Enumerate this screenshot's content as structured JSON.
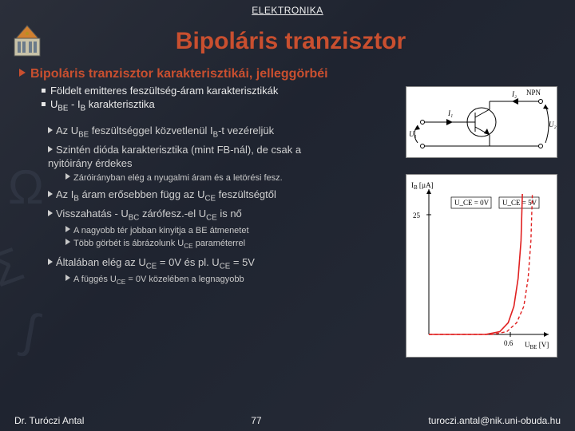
{
  "header": {
    "course": "ELEKTRONIKA",
    "title": "Bipoláris tranzisztor"
  },
  "section": {
    "heading": "Bipoláris tranzisztor karakterisztikái, jelleggörbéi"
  },
  "l1": {
    "a": "Földelt emitteres feszültség-áram karakterisztikák",
    "b_pre": "U",
    "b_sub1": "BE",
    "b_mid": " - I",
    "b_sub2": "B",
    "b_post": " karakterisztika"
  },
  "l2": {
    "p1_pre": "Az U",
    "p1_s1": "BE",
    "p1_mid": " feszültséggel közvetlenül I",
    "p1_s2": "B",
    "p1_post": "-t vezéreljük",
    "p2": "Szintén dióda karakterisztika (mint FB-nál), de csak a nyitóirány érdekes",
    "p2_sub": "Záróirányban elég a nyugalmi áram és a letörési fesz.",
    "p3_pre": "Az I",
    "p3_s1": "B",
    "p3_mid": " áram erősebben függ  az U",
    "p3_s2": "CE",
    "p3_post": " feszültségtől",
    "p4_pre": "Visszahatás - U",
    "p4_s1": "BC",
    "p4_mid": " zárófesz.-el U",
    "p4_s2": "CE",
    "p4_post": " is nő",
    "p4_sub1": "A nagyobb tér jobban kinyitja a BE átmenetet",
    "p4_sub2_pre": "Több görbét is ábrázolunk U",
    "p4_sub2_s": "CE",
    "p4_sub2_post": " paraméterrel",
    "p5_pre": "Általában elég az U",
    "p5_s1": "CE",
    "p5_mid": " = 0V és pl. U",
    "p5_s2": "CE",
    "p5_post": " = 5V",
    "p5_sub_pre": "A függés U",
    "p5_sub_s": "CE",
    "p5_sub_post": " = 0V közelében a legnagyobb"
  },
  "circuit": {
    "labels": {
      "U1": "U₁",
      "U2": "U₂",
      "I1": "I₁",
      "I2": "I₂",
      "npn": "NPN"
    },
    "stroke": "#000000",
    "line_width": 1,
    "bg": "#ffffff"
  },
  "chart": {
    "type": "line",
    "bg": "#ffffff",
    "axis_color": "#000000",
    "grid": false,
    "xlabel": "U",
    "xlabel_sub": "BE",
    "xlabel_unit": " [V]",
    "ylabel": "I",
    "ylabel_sub": "B",
    "ylabel_unit": " [µA]",
    "xlim": [
      0,
      0.8
    ],
    "ylim": [
      0,
      30
    ],
    "xticks": [
      0.6
    ],
    "yticks": [
      25
    ],
    "legend": {
      "left": "U_CE = 0V",
      "right": "U_CE = 5V"
    },
    "curve_color": "#e02020",
    "dash_color": "#e02020",
    "line_width": 1.6,
    "curve_solid": [
      [
        0.0,
        0
      ],
      [
        0.4,
        0
      ],
      [
        0.5,
        0.6
      ],
      [
        0.56,
        2.5
      ],
      [
        0.6,
        6
      ],
      [
        0.63,
        12
      ],
      [
        0.65,
        20
      ],
      [
        0.66,
        30
      ]
    ],
    "curve_dash": [
      [
        0.0,
        0
      ],
      [
        0.45,
        0
      ],
      [
        0.55,
        0.6
      ],
      [
        0.62,
        2.5
      ],
      [
        0.67,
        6
      ],
      [
        0.7,
        12
      ],
      [
        0.72,
        20
      ],
      [
        0.73,
        30
      ]
    ]
  },
  "footer": {
    "author": "Dr. Turóczi Antal",
    "page": "77",
    "email": "turoczi.antal@nik.uni-obuda.hu"
  }
}
